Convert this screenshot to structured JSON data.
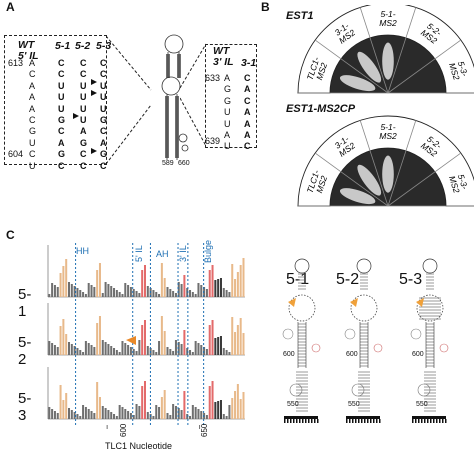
{
  "panels": {
    "a": "A",
    "b": "B",
    "c": "C"
  },
  "panel_a": {
    "left_box": {
      "header_wt": "WT",
      "header_wt2": "5' IL",
      "header_m1": "5-1",
      "header_m2": "5-2",
      "header_m3": "5-3",
      "top_pos": "613",
      "bottom_pos": "604",
      "wt_seq": [
        "A",
        "C",
        "A",
        "A",
        "A",
        "C",
        "G",
        "U",
        "C",
        "U"
      ],
      "m1_seq": [
        "C",
        "C",
        "U",
        "U",
        "U",
        "G",
        "C",
        "A",
        "G",
        "C"
      ],
      "m2_seq": [
        "C",
        "C",
        "U",
        "U",
        "U",
        "U",
        "A",
        "G",
        "C",
        "C"
      ],
      "m3_seq": [
        "C",
        "C",
        "U",
        "U",
        "U",
        "G",
        "C",
        "A",
        "G",
        "C"
      ]
    },
    "right_box": {
      "header_wt": "WT",
      "header_wt2": "3' IL",
      "header_m1": "3-1",
      "top_pos": "633",
      "bottom_pos": "639",
      "wt_seq": [
        "A",
        "G",
        "G",
        "U",
        "U",
        "A",
        "U"
      ],
      "m1_seq": [
        "C",
        "A",
        "C",
        "A",
        "A",
        "A",
        "C"
      ]
    },
    "stem_labels": {
      "left": "589",
      "right": "660"
    }
  },
  "panel_b": {
    "plate1_title": "EST1",
    "plate2_title": "EST1-MS2CP",
    "sectors": [
      "TLC1-MS2",
      "3-1-MS2",
      "5-1-MS2",
      "5-2-MS2",
      "5-3-MS2"
    ],
    "sector_lines": [
      [
        "TLC1-",
        "MS2"
      ],
      [
        "3-1-",
        "MS2"
      ],
      [
        "5-1-",
        "MS2"
      ],
      [
        "5-2-",
        "MS2"
      ],
      [
        "5-3-",
        "MS2"
      ]
    ]
  },
  "panel_c": {
    "rows": [
      "5-1",
      "5-2",
      "5-3"
    ],
    "regions": [
      "HH",
      "5' IL",
      "AH",
      "3' IL",
      "Bulge"
    ],
    "x_ticks": [
      "600",
      "650"
    ],
    "x_label": "TLC1 Nucleotide",
    "struct_titles": [
      "5-1",
      "5-2",
      "5-3"
    ],
    "struct_labels": [
      "600",
      "550"
    ]
  },
  "colors": {
    "orange": "#e8b98a",
    "red": "#e36a6a",
    "gray": "#6f6f6f",
    "dark": "#3a3a3a",
    "blue": "#1e6fb3"
  }
}
